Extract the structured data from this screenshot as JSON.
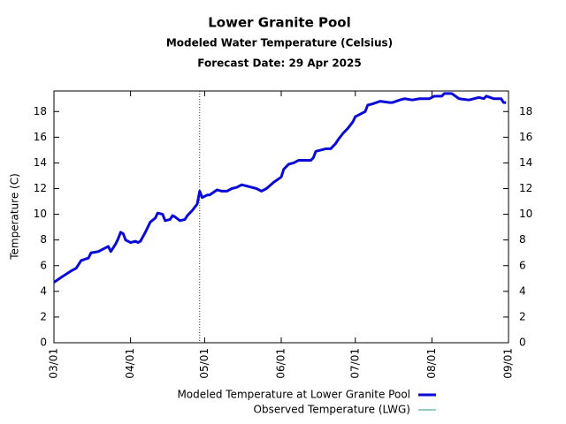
{
  "chart_data": {
    "type": "line",
    "title": "Lower Granite Pool",
    "subtitles": [
      "Modeled Water Temperature (Celsius)",
      "Forecast Date: 29 Apr 2025"
    ],
    "y_label": "Temperature (C)",
    "x": [
      "03/01",
      "03/04",
      "03/08",
      "03/10",
      "03/12",
      "03/15",
      "03/16",
      "03/19",
      "03/21",
      "03/23",
      "03/24",
      "03/26",
      "03/27",
      "03/28",
      "03/29",
      "03/30",
      "04/01",
      "04/03",
      "04/04",
      "04/05",
      "04/07",
      "04/09",
      "04/11",
      "04/12",
      "04/14",
      "04/15",
      "04/17",
      "04/18",
      "04/19",
      "04/21",
      "04/23",
      "04/24",
      "04/26",
      "04/28",
      "04/29",
      "04/30",
      "05/02",
      "05/03",
      "05/06",
      "05/08",
      "05/10",
      "05/12",
      "05/14",
      "05/16",
      "05/18",
      "05/22",
      "05/24",
      "05/26",
      "05/29",
      "06/01",
      "06/02",
      "06/04",
      "06/06",
      "06/08",
      "06/13",
      "06/14",
      "06/15",
      "06/17",
      "06/19",
      "06/21",
      "06/23",
      "06/24",
      "06/26",
      "06/28",
      "06/30",
      "07/01",
      "07/03",
      "07/05",
      "07/06",
      "07/08",
      "07/11",
      "07/15",
      "07/16",
      "07/19",
      "07/21",
      "07/24",
      "07/27",
      "07/31",
      "08/02",
      "08/05",
      "08/06",
      "08/09",
      "08/12",
      "08/16",
      "08/20",
      "08/22",
      "08/23",
      "08/26",
      "08/29",
      "08/30",
      "08/31"
    ],
    "series": [
      {
        "name": "Observed Temperature (LWG)",
        "color": "#2a9d6f",
        "width": 1,
        "values": [
          4.7,
          5.1,
          5.6,
          5.8,
          6.4,
          6.6,
          7.0,
          7.1,
          7.3,
          7.5,
          7.1,
          7.7,
          8.1,
          8.6,
          8.5,
          8.0,
          7.8,
          7.9,
          7.8,
          7.9,
          8.6,
          9.4,
          9.7,
          10.1,
          10.0,
          9.5,
          9.6,
          9.9,
          9.8,
          9.5,
          9.6,
          9.9,
          10.3,
          10.8,
          11.8,
          null,
          null,
          null,
          null,
          null,
          null,
          null,
          null,
          null,
          null,
          null,
          null,
          null,
          null,
          null,
          null,
          null,
          null,
          null,
          null,
          null,
          null,
          null,
          null,
          null,
          null,
          null,
          null,
          null,
          null,
          null,
          null,
          null,
          null,
          null,
          null,
          null,
          null,
          null,
          null,
          null,
          null,
          null,
          null,
          null,
          null,
          null,
          null,
          null,
          null,
          null,
          null,
          null,
          null,
          null,
          null
        ]
      },
      {
        "name": "Modeled Temperature at Lower Granite Pool",
        "color": "#0a0ad8",
        "width": 3,
        "values": [
          4.7,
          5.1,
          5.6,
          5.8,
          6.4,
          6.6,
          7.0,
          7.1,
          7.3,
          7.5,
          7.1,
          7.7,
          8.1,
          8.6,
          8.5,
          8.0,
          7.8,
          7.9,
          7.8,
          7.9,
          8.6,
          9.4,
          9.7,
          10.1,
          10.0,
          9.5,
          9.6,
          9.9,
          9.8,
          9.5,
          9.6,
          9.9,
          10.3,
          10.8,
          11.8,
          11.3,
          11.5,
          11.5,
          11.9,
          11.8,
          11.8,
          12.0,
          12.1,
          12.3,
          12.2,
          12.0,
          11.8,
          12.0,
          12.5,
          12.9,
          13.5,
          13.9,
          14.0,
          14.2,
          14.2,
          14.4,
          14.9,
          15.0,
          15.1,
          15.1,
          15.5,
          15.8,
          16.3,
          16.7,
          17.2,
          17.6,
          17.8,
          18.0,
          18.5,
          18.6,
          18.8,
          18.7,
          18.7,
          18.9,
          19.0,
          18.9,
          19.0,
          19.0,
          19.2,
          19.2,
          19.4,
          19.4,
          19.0,
          18.9,
          19.1,
          19.0,
          19.2,
          19.0,
          19.0,
          18.7,
          18.7
        ]
      }
    ],
    "legend_order": [
      1,
      0
    ],
    "legend": "bottom",
    "forecast_x": "04/29",
    "xlim": [
      "03/01",
      "09/01"
    ],
    "xticks": [
      "03/01",
      "04/01",
      "05/01",
      "06/01",
      "07/01",
      "08/01",
      "09/01"
    ],
    "ylim": [
      0,
      19.6
    ],
    "yticks": [
      0,
      2,
      4,
      6,
      8,
      10,
      12,
      14,
      16,
      18
    ],
    "y2lim": [
      0,
      19.6
    ],
    "y2ticks": [
      0,
      2,
      4,
      6,
      8,
      10,
      12,
      14,
      16,
      18
    ]
  }
}
